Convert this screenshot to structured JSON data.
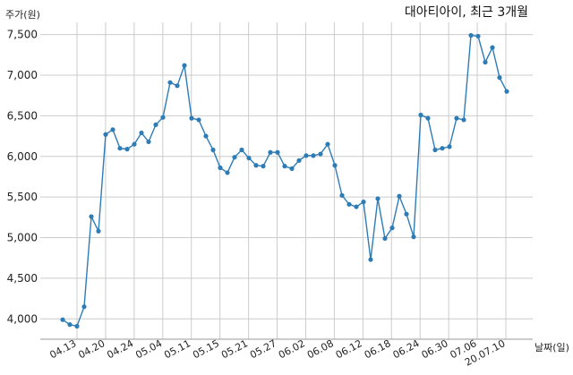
{
  "chart_data": {
    "type": "line",
    "title": "대아티아이, 최근 3개월",
    "ylabel": "주가(원)",
    "xlabel": "날짜(일)",
    "ylim": [
      3750,
      7650
    ],
    "yticks": [
      4000,
      4500,
      5000,
      5500,
      6000,
      6500,
      7000,
      7500
    ],
    "ytick_labels": [
      "4,000",
      "4,500",
      "5,000",
      "5,500",
      "6,000",
      "6,500",
      "7,000",
      "7,500"
    ],
    "xtick_labels": [
      "04.13",
      "04.20",
      "04.24",
      "05.04",
      "05.11",
      "05.15",
      "05.21",
      "05.27",
      "06.02",
      "06.08",
      "06.12",
      "06.18",
      "06.24",
      "06.30",
      "07.06",
      "20.07.10"
    ],
    "grid": true,
    "line_color": "#2e7cb5",
    "series": [
      {
        "values": [
          3990,
          3930,
          3910,
          4150,
          5260,
          5080,
          6270,
          6330,
          6100,
          6090,
          6150,
          6290,
          6180,
          6390,
          6480,
          6910,
          6870,
          7120,
          6470,
          6450,
          6250,
          6080,
          5860,
          5800,
          5990,
          6080,
          5980,
          5890,
          5880,
          6050,
          6050,
          5880,
          5850,
          5950,
          6010,
          6010,
          6030,
          6150,
          5890,
          5520,
          5410,
          5380,
          5440,
          4730,
          5480,
          4990,
          5120,
          5510,
          5290,
          5010,
          6510,
          6470,
          6080,
          6100,
          6120,
          6470,
          6450,
          7490,
          7480,
          7160,
          7340,
          6970,
          6800
        ]
      }
    ]
  }
}
